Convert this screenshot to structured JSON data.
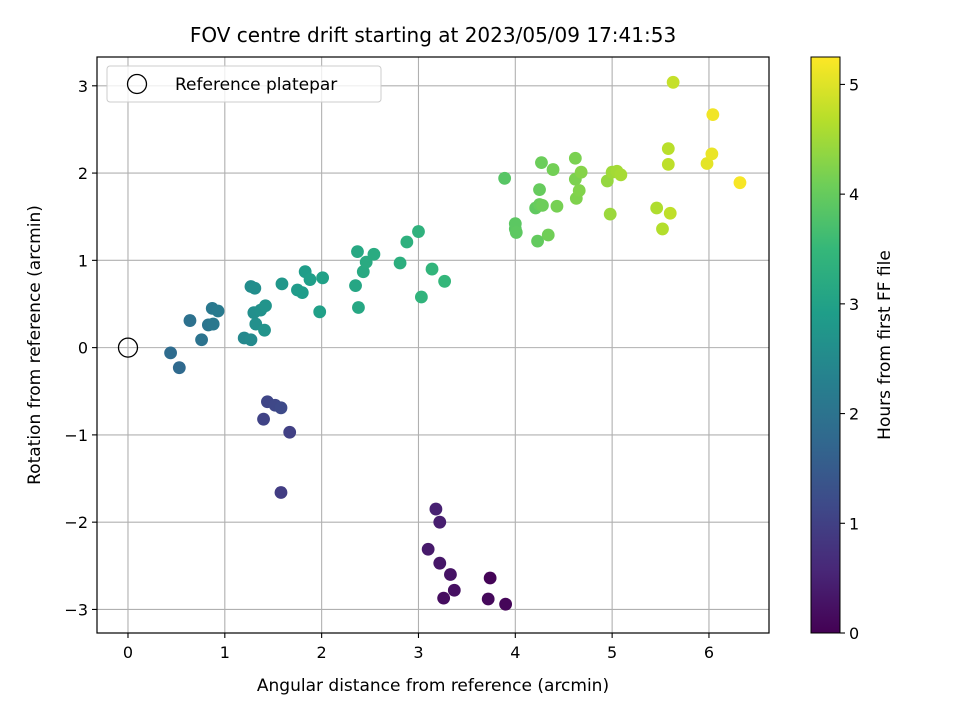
{
  "chart_data": {
    "type": "scatter",
    "title": "FOV centre drift starting at 2023/05/09 17:41:53",
    "xlabel": "Angular distance from reference (arcmin)",
    "ylabel": "Rotation from reference (arcmin)",
    "xlim": [
      -0.32,
      6.62
    ],
    "ylim": [
      -3.27,
      3.33
    ],
    "xticks": [
      0,
      1,
      2,
      3,
      4,
      5,
      6
    ],
    "yticks": [
      -3,
      -2,
      -1,
      0,
      1,
      2,
      3
    ],
    "grid": true,
    "legend": {
      "label": "Reference platepar",
      "placement": "top-left",
      "marker": "open-circle"
    },
    "reference_point": {
      "x": 0,
      "y": 0
    },
    "colorbar": {
      "label": "Hours from first FF file",
      "colormap": "viridis",
      "range": [
        0,
        5.25
      ],
      "ticks": [
        0,
        1,
        2,
        3,
        4,
        5
      ]
    },
    "points": [
      {
        "x": 3.74,
        "y": -2.64,
        "c": 0.05
      },
      {
        "x": 3.9,
        "y": -2.94,
        "c": 0.08
      },
      {
        "x": 3.72,
        "y": -2.88,
        "c": 0.12
      },
      {
        "x": 3.26,
        "y": -2.87,
        "c": 0.18
      },
      {
        "x": 3.37,
        "y": -2.78,
        "c": 0.22
      },
      {
        "x": 3.33,
        "y": -2.6,
        "c": 0.27
      },
      {
        "x": 3.22,
        "y": -2.47,
        "c": 0.32
      },
      {
        "x": 3.1,
        "y": -2.31,
        "c": 0.38
      },
      {
        "x": 3.22,
        "y": -2.0,
        "c": 0.43
      },
      {
        "x": 3.18,
        "y": -1.85,
        "c": 0.48
      },
      {
        "x": 1.58,
        "y": -1.66,
        "c": 0.95
      },
      {
        "x": 1.67,
        "y": -0.97,
        "c": 1.0
      },
      {
        "x": 1.4,
        "y": -0.82,
        "c": 1.05
      },
      {
        "x": 1.44,
        "y": -0.62,
        "c": 1.1
      },
      {
        "x": 1.52,
        "y": -0.66,
        "c": 1.13
      },
      {
        "x": 1.58,
        "y": -0.69,
        "c": 1.17
      },
      {
        "x": 0.53,
        "y": -0.23,
        "c": 1.8
      },
      {
        "x": 0.44,
        "y": -0.06,
        "c": 1.85
      },
      {
        "x": 0.64,
        "y": 0.31,
        "c": 1.95
      },
      {
        "x": 0.76,
        "y": 0.09,
        "c": 2.0
      },
      {
        "x": 0.83,
        "y": 0.26,
        "c": 2.05
      },
      {
        "x": 0.87,
        "y": 0.45,
        "c": 2.1
      },
      {
        "x": 0.88,
        "y": 0.27,
        "c": 2.12
      },
      {
        "x": 0.93,
        "y": 0.42,
        "c": 2.15
      },
      {
        "x": 1.2,
        "y": 0.11,
        "c": 2.45
      },
      {
        "x": 1.27,
        "y": 0.09,
        "c": 2.5
      },
      {
        "x": 1.27,
        "y": 0.7,
        "c": 2.55
      },
      {
        "x": 1.31,
        "y": 0.68,
        "c": 2.58
      },
      {
        "x": 1.3,
        "y": 0.4,
        "c": 2.6
      },
      {
        "x": 1.32,
        "y": 0.27,
        "c": 2.62
      },
      {
        "x": 1.37,
        "y": 0.43,
        "c": 2.65
      },
      {
        "x": 1.41,
        "y": 0.2,
        "c": 2.68
      },
      {
        "x": 1.42,
        "y": 0.48,
        "c": 2.7
      },
      {
        "x": 1.59,
        "y": 0.73,
        "c": 2.78
      },
      {
        "x": 1.75,
        "y": 0.66,
        "c": 2.85
      },
      {
        "x": 1.8,
        "y": 0.63,
        "c": 2.88
      },
      {
        "x": 1.83,
        "y": 0.87,
        "c": 2.9
      },
      {
        "x": 1.88,
        "y": 0.78,
        "c": 2.93
      },
      {
        "x": 1.98,
        "y": 0.41,
        "c": 2.96
      },
      {
        "x": 2.01,
        "y": 0.8,
        "c": 2.98
      },
      {
        "x": 2.35,
        "y": 0.71,
        "c": 3.1
      },
      {
        "x": 2.38,
        "y": 0.46,
        "c": 3.12
      },
      {
        "x": 2.37,
        "y": 1.1,
        "c": 3.15
      },
      {
        "x": 2.43,
        "y": 0.87,
        "c": 3.18
      },
      {
        "x": 2.46,
        "y": 0.98,
        "c": 3.2
      },
      {
        "x": 2.54,
        "y": 1.07,
        "c": 3.22
      },
      {
        "x": 2.81,
        "y": 0.97,
        "c": 3.3
      },
      {
        "x": 2.88,
        "y": 1.21,
        "c": 3.33
      },
      {
        "x": 3.0,
        "y": 1.33,
        "c": 3.36
      },
      {
        "x": 3.03,
        "y": 0.58,
        "c": 3.4
      },
      {
        "x": 3.14,
        "y": 0.9,
        "c": 3.43
      },
      {
        "x": 3.27,
        "y": 0.76,
        "c": 3.47
      },
      {
        "x": 3.89,
        "y": 1.94,
        "c": 3.85
      },
      {
        "x": 4.0,
        "y": 1.36,
        "c": 3.88
      },
      {
        "x": 4.0,
        "y": 1.42,
        "c": 3.9
      },
      {
        "x": 4.01,
        "y": 1.32,
        "c": 3.92
      },
      {
        "x": 4.21,
        "y": 1.6,
        "c": 3.95
      },
      {
        "x": 4.23,
        "y": 1.22,
        "c": 3.97
      },
      {
        "x": 4.25,
        "y": 1.81,
        "c": 4.0
      },
      {
        "x": 4.25,
        "y": 1.64,
        "c": 4.02
      },
      {
        "x": 4.27,
        "y": 2.12,
        "c": 4.05
      },
      {
        "x": 4.28,
        "y": 1.63,
        "c": 4.07
      },
      {
        "x": 4.34,
        "y": 1.29,
        "c": 4.1
      },
      {
        "x": 4.39,
        "y": 2.04,
        "c": 4.12
      },
      {
        "x": 4.43,
        "y": 1.62,
        "c": 4.15
      },
      {
        "x": 4.62,
        "y": 2.17,
        "c": 4.18
      },
      {
        "x": 4.62,
        "y": 1.93,
        "c": 4.2
      },
      {
        "x": 4.63,
        "y": 1.71,
        "c": 4.22
      },
      {
        "x": 4.66,
        "y": 1.8,
        "c": 4.25
      },
      {
        "x": 4.68,
        "y": 2.01,
        "c": 4.28
      },
      {
        "x": 4.95,
        "y": 1.91,
        "c": 4.4
      },
      {
        "x": 4.98,
        "y": 1.53,
        "c": 4.45
      },
      {
        "x": 5.0,
        "y": 2.01,
        "c": 4.48
      },
      {
        "x": 5.05,
        "y": 2.02,
        "c": 4.52
      },
      {
        "x": 5.09,
        "y": 1.98,
        "c": 4.55
      },
      {
        "x": 5.46,
        "y": 1.6,
        "c": 4.62
      },
      {
        "x": 5.52,
        "y": 1.36,
        "c": 4.65
      },
      {
        "x": 5.58,
        "y": 2.28,
        "c": 4.7
      },
      {
        "x": 5.58,
        "y": 2.1,
        "c": 4.73
      },
      {
        "x": 5.6,
        "y": 1.54,
        "c": 4.75
      },
      {
        "x": 5.63,
        "y": 3.04,
        "c": 4.8
      },
      {
        "x": 5.98,
        "y": 2.11,
        "c": 5.05
      },
      {
        "x": 6.03,
        "y": 2.22,
        "c": 5.1
      },
      {
        "x": 6.04,
        "y": 2.67,
        "c": 5.15
      },
      {
        "x": 6.32,
        "y": 1.89,
        "c": 5.2
      }
    ]
  }
}
